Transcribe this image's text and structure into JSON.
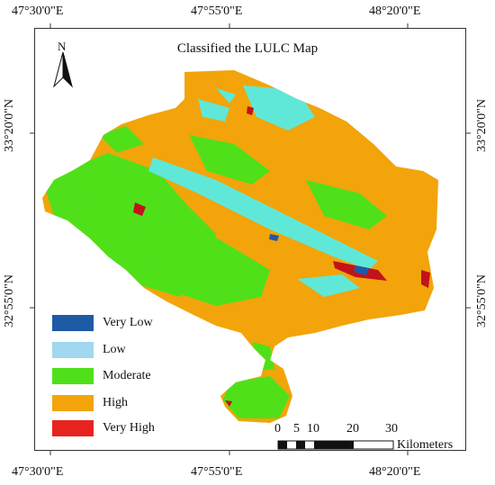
{
  "map": {
    "title": "Classified the LULC Map",
    "north_label": "N"
  },
  "graticule": {
    "lon_west": "47°30'0\"E",
    "lon_mid": "47°55'0\"E",
    "lon_east": "48°20'0\"E",
    "lat_north": "33°20'0\"N",
    "lat_south": "32°55'0\"N"
  },
  "legend": {
    "items": [
      {
        "label": "Very Low",
        "color": "#1f5aa6"
      },
      {
        "label": "Low",
        "color": "#9fd8f0"
      },
      {
        "label": "Moderate",
        "color": "#4fe01a"
      },
      {
        "label": "High",
        "color": "#f2a40a"
      },
      {
        "label": "Very High",
        "color": "#e8231f"
      }
    ]
  },
  "scale_bar": {
    "ticks": [
      "0",
      "5",
      "10",
      "20",
      "30"
    ],
    "unit": "Kilometers"
  },
  "colors": {
    "high": "#f2a40a",
    "moderate": "#4fe01a",
    "low": "#5fe8d8",
    "very_high": "#c2121a",
    "very_low": "#1f5aa6"
  }
}
